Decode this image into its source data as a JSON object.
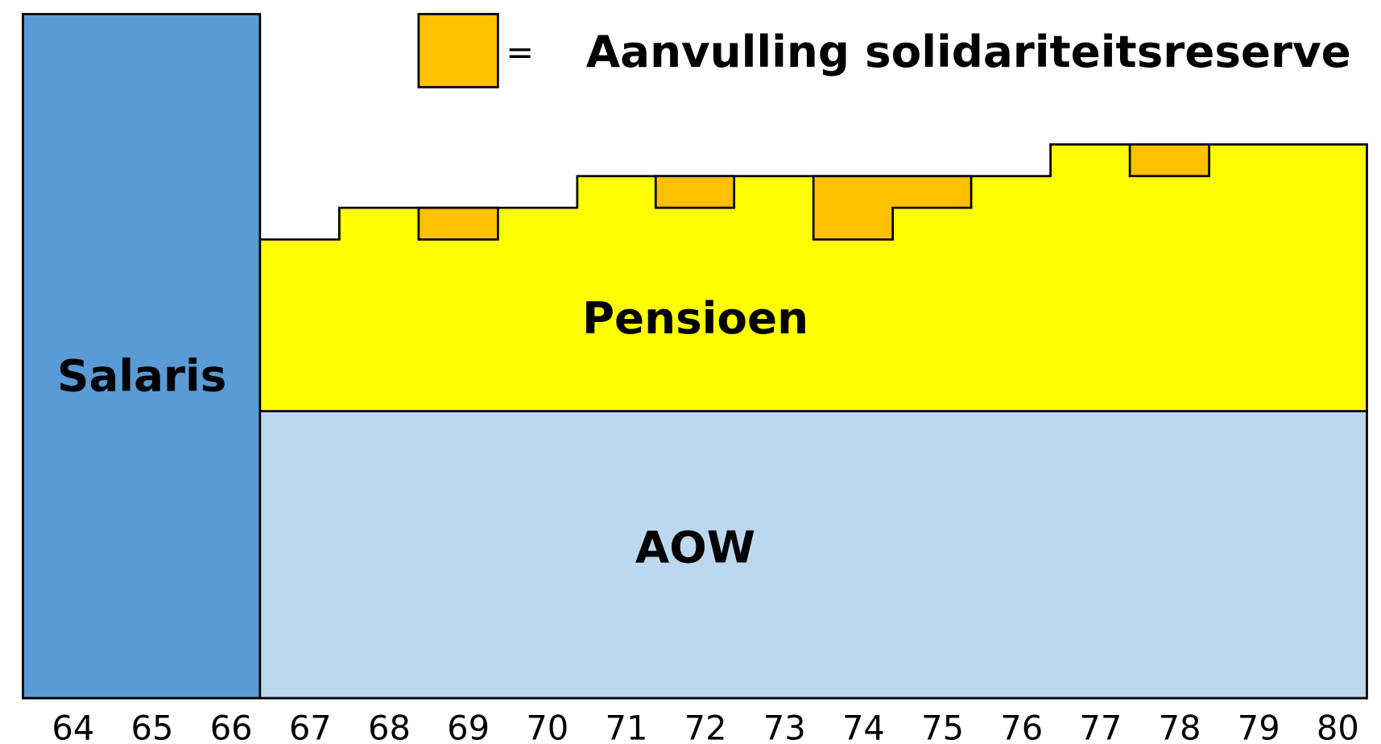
{
  "legend": {
    "symbol": "=",
    "label": "Aanvulling solidariteitsreserve"
  },
  "regions": {
    "salary": "Salaris",
    "pension": "Pensioen",
    "state_pension": "AOW"
  },
  "x_axis": {
    "labels": [
      "64",
      "65",
      "66",
      "67",
      "68",
      "69",
      "70",
      "71",
      "72",
      "73",
      "74",
      "75",
      "76",
      "77",
      "78",
      "79",
      "80"
    ]
  }
}
